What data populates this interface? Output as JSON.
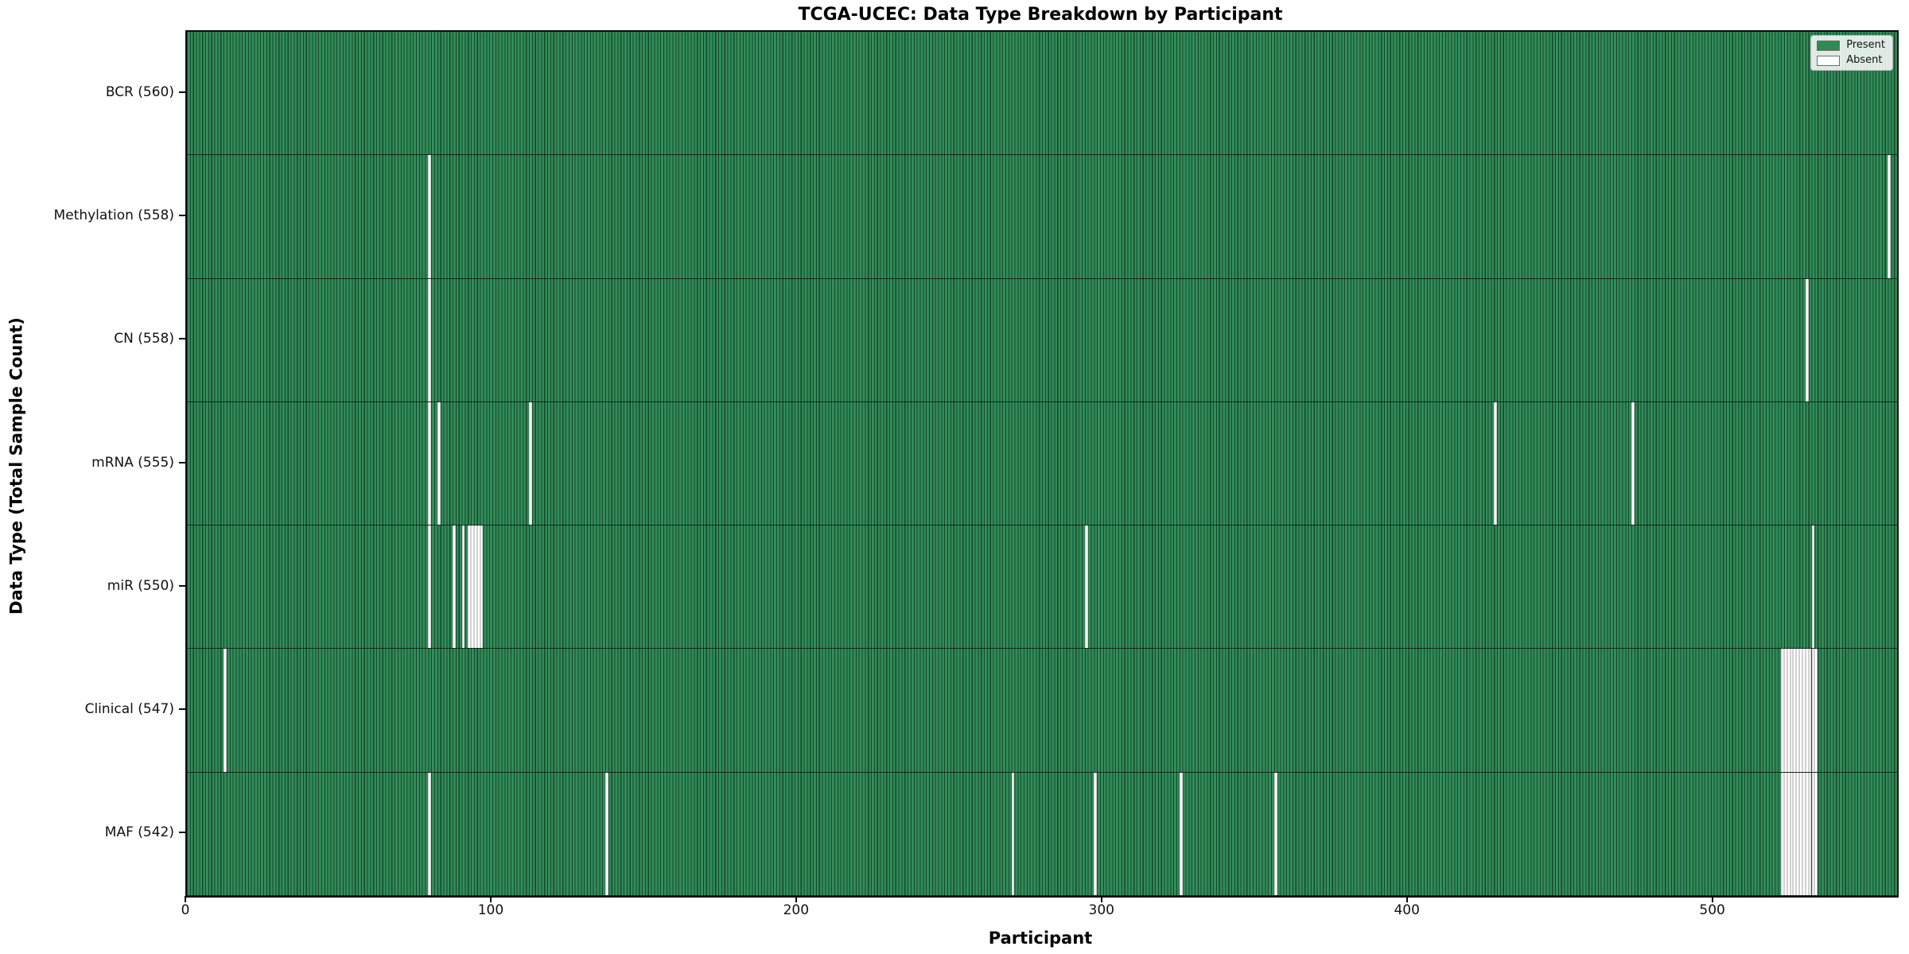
{
  "figure": {
    "background": "#ffffff"
  },
  "colors": {
    "present": "#2e8b57",
    "absent": "#ffffff",
    "bar_edge": "#14432b",
    "spine": "#0a0a0a"
  },
  "chart_data": {
    "type": "heatmap",
    "title": "TCGA-UCEC: Data Type Breakdown by Participant",
    "xlabel": "Participant",
    "ylabel": "Data Type (Total Sample Count)",
    "x_ticks": [
      0,
      100,
      200,
      300,
      400,
      500
    ],
    "x_range": [
      0,
      560
    ],
    "n_participants": 560,
    "grid": false,
    "legend_position": "upper right",
    "legend": [
      {
        "label": "Present",
        "color": "#2e8b57"
      },
      {
        "label": "Absent",
        "color": "#ffffff"
      }
    ],
    "rows": [
      {
        "label": "BCR (560)",
        "name": "BCR",
        "count": 560,
        "absent": []
      },
      {
        "label": "Methylation (558)",
        "name": "Methylation",
        "count": 558,
        "absent": [
          79,
          557
        ]
      },
      {
        "label": "CN (558)",
        "name": "CN",
        "count": 558,
        "absent": [
          79,
          530
        ]
      },
      {
        "label": "mRNA (555)",
        "name": "mRNA",
        "count": 555,
        "absent": [
          79,
          82,
          112,
          428,
          473
        ]
      },
      {
        "label": "miR (550)",
        "name": "miR",
        "count": 550,
        "absent": [
          79,
          87,
          90,
          92,
          93,
          94,
          95,
          96,
          294,
          532
        ]
      },
      {
        "label": "Clinical (547)",
        "name": "Clinical",
        "count": 547,
        "absent": [
          12,
          522,
          523,
          524,
          525,
          526,
          527,
          528,
          529,
          530,
          531,
          532,
          533
        ]
      },
      {
        "label": "MAF (542)",
        "name": "MAF",
        "count": 542,
        "absent": [
          79,
          137,
          270,
          297,
          325,
          356,
          522,
          523,
          524,
          525,
          526,
          527,
          528,
          529,
          530,
          531,
          532,
          533
        ]
      }
    ]
  }
}
